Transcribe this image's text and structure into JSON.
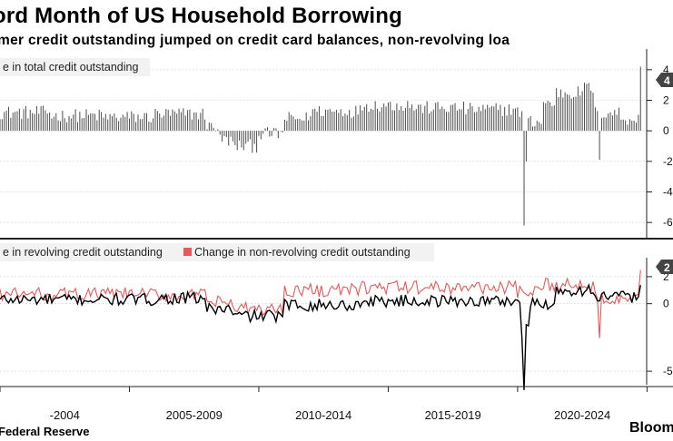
{
  "title": "ord Month of US Household Borrowing",
  "subtitle": "mer credit outstanding jumped on credit card balances, non-revolving loa",
  "footer": {
    "source": "Federal Reserve",
    "brand": "Bloom"
  },
  "colors": {
    "bars": "#4d4d4d",
    "revolving": "#000000",
    "non_revolving": "#e8585a",
    "callout": "#444444",
    "grid": "#cfcfcf"
  },
  "chart_data": [
    {
      "type": "bar",
      "panel": "top",
      "legend": "e in total credit outstanding",
      "x_range": [
        "2000-01",
        "2024-12"
      ],
      "ylim": [
        -70,
        50
      ],
      "y_tick_labels": [
        "4",
        "2",
        "0",
        "-2",
        "-4",
        "-6"
      ],
      "y_tick_values": [
        40,
        20,
        0,
        -20,
        -40,
        -60
      ],
      "callout_label": "4",
      "highlights": [
        {
          "x": "2020-04",
          "value": -62
        },
        {
          "x": "2020-05",
          "value": -20
        },
        {
          "x": "2023-03",
          "value": -19
        },
        {
          "x": "2024-10",
          "value": 42
        }
      ],
      "segments": [
        {
          "start": "2000-01",
          "end": "2001-12",
          "mean": 12
        },
        {
          "start": "2002-01",
          "end": "2003-12",
          "mean": 10
        },
        {
          "start": "2004-01",
          "end": "2005-12",
          "mean": 9
        },
        {
          "start": "2006-01",
          "end": "2007-12",
          "mean": 11
        },
        {
          "start": "2008-01",
          "end": "2008-06",
          "mean": 3
        },
        {
          "start": "2008-07",
          "end": "2008-12",
          "mean": -6
        },
        {
          "start": "2009-01",
          "end": "2009-12",
          "mean": -10
        },
        {
          "start": "2010-01",
          "end": "2010-12",
          "mean": -2
        },
        {
          "start": "2011-01",
          "end": "2011-12",
          "mean": 8
        },
        {
          "start": "2012-01",
          "end": "2013-12",
          "mean": 13
        },
        {
          "start": "2014-01",
          "end": "2015-12",
          "mean": 17
        },
        {
          "start": "2016-01",
          "end": "2017-12",
          "mean": 15
        },
        {
          "start": "2018-01",
          "end": "2019-12",
          "mean": 14
        },
        {
          "start": "2020-01",
          "end": "2020-03",
          "mean": 12
        },
        {
          "start": "2020-06",
          "end": "2020-12",
          "mean": 6
        },
        {
          "start": "2021-01",
          "end": "2021-06",
          "mean": 18
        },
        {
          "start": "2021-07",
          "end": "2022-06",
          "mean": 25
        },
        {
          "start": "2022-07",
          "end": "2022-12",
          "mean": 28
        },
        {
          "start": "2023-01",
          "end": "2023-12",
          "mean": 12
        },
        {
          "start": "2024-01",
          "end": "2024-09",
          "mean": 8
        }
      ]
    },
    {
      "type": "line",
      "panel": "bottom",
      "x_range": [
        "2000-01",
        "2024-12"
      ],
      "ylim": [
        -60,
        30
      ],
      "y_tick_labels": [
        "2",
        "0",
        "-5"
      ],
      "y_tick_values": [
        20,
        0,
        -50
      ],
      "callout_label": "2",
      "series": [
        {
          "name": "e in revolving credit outstanding",
          "color": "#000000",
          "segments": [
            {
              "start": "2000-01",
              "end": "2005-12",
              "mean": 3
            },
            {
              "start": "2006-01",
              "end": "2007-12",
              "mean": 4
            },
            {
              "start": "2008-01",
              "end": "2008-12",
              "mean": -4
            },
            {
              "start": "2009-01",
              "end": "2010-12",
              "mean": -9
            },
            {
              "start": "2011-01",
              "end": "2013-12",
              "mean": -1
            },
            {
              "start": "2014-01",
              "end": "2019-12",
              "mean": 2
            },
            {
              "start": "2020-01",
              "end": "2020-02",
              "mean": 3
            },
            {
              "start": "2020-03",
              "end": "2020-03",
              "mean": -25
            },
            {
              "start": "2020-04",
              "end": "2020-04",
              "mean": -62
            },
            {
              "start": "2020-05",
              "end": "2020-06",
              "mean": -18
            },
            {
              "start": "2020-07",
              "end": "2021-06",
              "mean": 0
            },
            {
              "start": "2021-07",
              "end": "2022-12",
              "mean": 10
            },
            {
              "start": "2023-01",
              "end": "2024-09",
              "mean": 5
            },
            {
              "start": "2024-10",
              "end": "2024-10",
              "mean": 18
            }
          ]
        },
        {
          "name": "Change in non-revolving credit outstanding",
          "color": "#e8585a",
          "segments": [
            {
              "start": "2000-01",
              "end": "2005-12",
              "mean": 7
            },
            {
              "start": "2006-01",
              "end": "2007-12",
              "mean": 6
            },
            {
              "start": "2008-01",
              "end": "2008-12",
              "mean": 1
            },
            {
              "start": "2009-01",
              "end": "2010-12",
              "mean": -4
            },
            {
              "start": "2011-01",
              "end": "2013-12",
              "mean": 10
            },
            {
              "start": "2014-01",
              "end": "2019-12",
              "mean": 12
            },
            {
              "start": "2020-01",
              "end": "2020-12",
              "mean": 8
            },
            {
              "start": "2021-01",
              "end": "2022-12",
              "mean": 14
            },
            {
              "start": "2023-01",
              "end": "2023-02",
              "mean": 6
            },
            {
              "start": "2023-03",
              "end": "2023-03",
              "mean": -23
            },
            {
              "start": "2023-04",
              "end": "2024-09",
              "mean": 5
            },
            {
              "start": "2024-10",
              "end": "2024-10",
              "mean": 20
            }
          ]
        }
      ]
    }
  ],
  "x_axis": {
    "tick_labels": [
      "-2004",
      "2005-2009",
      "2010-2014",
      "2015-2019",
      "2020-2024"
    ],
    "tick_positions": [
      "2002-07",
      "2007-07",
      "2012-07",
      "2017-07",
      "2022-07"
    ]
  }
}
